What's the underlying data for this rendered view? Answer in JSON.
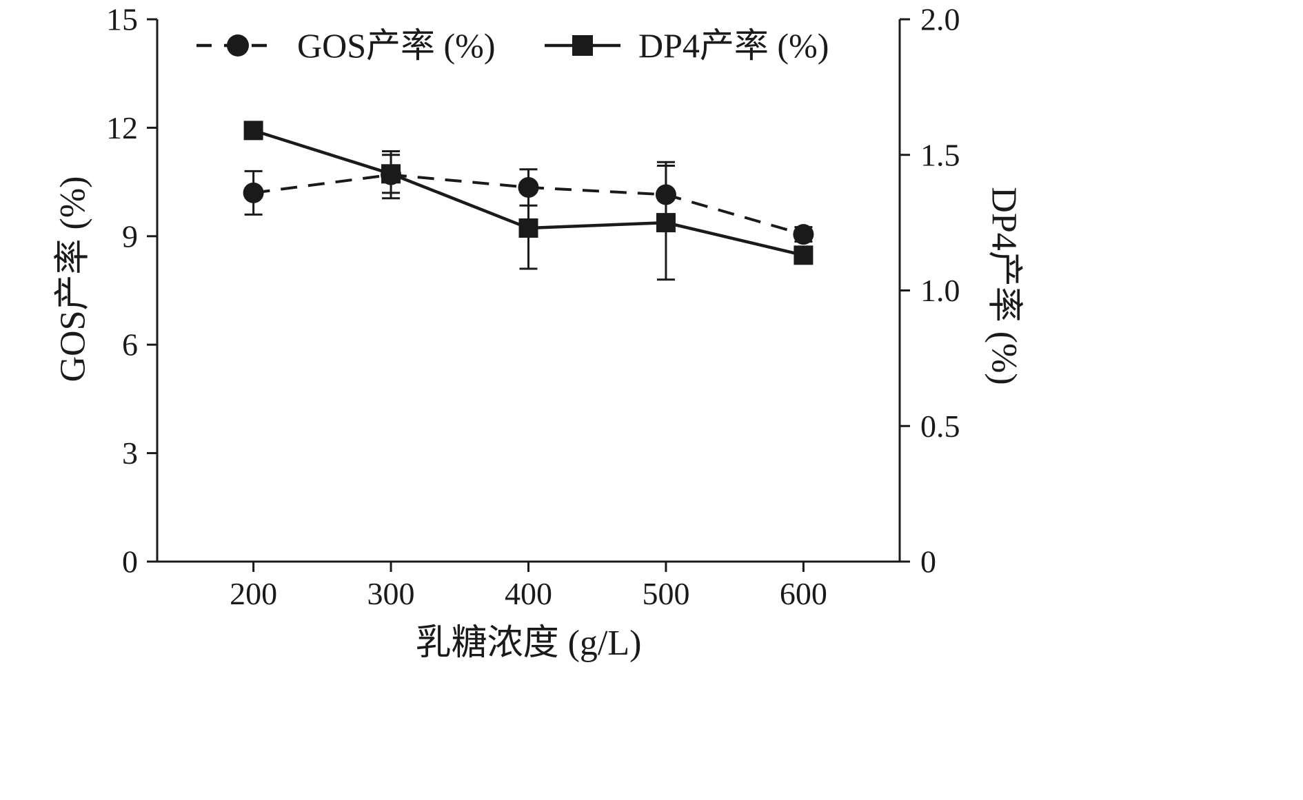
{
  "chart_data": {
    "type": "line",
    "title": "",
    "xlabel": "乳糖浓度 (g/L)",
    "ylabel_left": "GOS产率 (%)",
    "ylabel_right": "DP4产率 (%)",
    "x": [
      200,
      300,
      400,
      500,
      600
    ],
    "x_ticks": [
      "200",
      "300",
      "400",
      "500",
      "600"
    ],
    "x_range": [
      130,
      670
    ],
    "y_left_ticks": [
      "0",
      "3",
      "6",
      "9",
      "12",
      "15"
    ],
    "y_left_range": [
      0,
      15
    ],
    "y_right_ticks": [
      "0",
      "0.5",
      "1.0",
      "1.5",
      "2.0"
    ],
    "y_right_range": [
      0,
      2
    ],
    "grid": false,
    "legend_position": "top-inside",
    "color": "#1a1a1a",
    "series": [
      {
        "name": "GOS产率 (%)",
        "axis": "left",
        "marker": "circle",
        "line_style": "dashed",
        "values": [
          10.2,
          10.7,
          10.35,
          10.15,
          9.05
        ],
        "errors": [
          0.6,
          0.65,
          0.5,
          0.9,
          0.2
        ]
      },
      {
        "name": "DP4产率 (%)",
        "axis": "right",
        "marker": "square",
        "line_style": "solid",
        "values": [
          1.59,
          1.43,
          1.23,
          1.25,
          1.13
        ],
        "errors": [
          0,
          0.07,
          0.15,
          0.21,
          0
        ]
      }
    ]
  }
}
